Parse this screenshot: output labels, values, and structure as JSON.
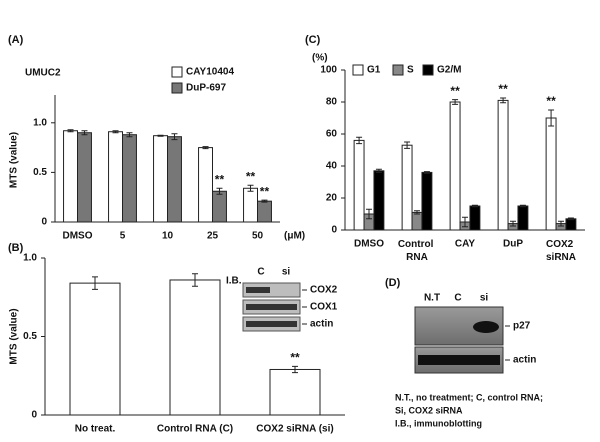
{
  "chart_data": [
    {
      "type": "bar",
      "panel_label": "(A)",
      "title": "UMUC2",
      "ylabel": "MTS (value)",
      "xlabel": "(μM)",
      "categories": [
        "DMSO",
        "5",
        "10",
        "25",
        "50"
      ],
      "series": [
        {
          "name": "CAY10404",
          "color": "#ffffff",
          "values": [
            0.92,
            0.91,
            0.87,
            0.75,
            0.34
          ],
          "errors": [
            0.01,
            0.01,
            0.005,
            0.01,
            0.03
          ],
          "annotations": [
            null,
            null,
            null,
            null,
            "**"
          ]
        },
        {
          "name": "DuP-697",
          "color": "#777777",
          "values": [
            0.9,
            0.88,
            0.86,
            0.31,
            0.21
          ],
          "errors": [
            0.02,
            0.02,
            0.03,
            0.03,
            0.01
          ],
          "annotations": [
            null,
            null,
            null,
            "**",
            "**"
          ]
        }
      ],
      "ylim": [
        0,
        1.25
      ],
      "yticks": [
        0,
        0.5,
        {
          "value": 1,
          "label": "1.0"
        }
      ],
      "legend": "upper right"
    },
    {
      "type": "bar",
      "panel_label": "(B)",
      "ylabel": "MTS (value)",
      "categories": [
        "No treat.",
        "Control RNA (C)",
        "COX2 siRNA (si)"
      ],
      "values": [
        0.84,
        0.86,
        0.29
      ],
      "errors": [
        0.04,
        0.04,
        0.02
      ],
      "annotations": [
        null,
        null,
        "**"
      ],
      "color": "#ffffff",
      "ylim": [
        0,
        1
      ],
      "yticks": [
        0,
        0.5,
        {
          "value": 1,
          "label": "1.0"
        }
      ],
      "inset": {
        "label": "I.B.",
        "lanes": [
          "C",
          "si"
        ],
        "bands": [
          "COX2",
          "COX1",
          "actin"
        ]
      }
    },
    {
      "type": "bar",
      "panel_label": "(C)",
      "ylabel": "(%)",
      "categories": [
        "DMSO",
        "Control RNA",
        "CAY",
        "DuP",
        "COX2 siRNA"
      ],
      "series": [
        {
          "name": "G1",
          "color": "#ffffff",
          "values": [
            56,
            53,
            80,
            81,
            70
          ],
          "errors": [
            2,
            2,
            1.5,
            1.5,
            5
          ],
          "annotations": [
            null,
            null,
            "**",
            "**",
            "**"
          ]
        },
        {
          "name": "S",
          "color": "#888888",
          "values": [
            10,
            11,
            5,
            4,
            4
          ],
          "errors": [
            3,
            1,
            3,
            1.5,
            1.5
          ],
          "annotations": [
            null,
            null,
            null,
            null,
            null
          ]
        },
        {
          "name": "G2/M",
          "color": "#000000",
          "values": [
            37,
            36,
            15,
            15,
            7
          ],
          "errors": [
            1,
            0.5,
            0.5,
            0.5,
            0.5
          ],
          "annotations": [
            null,
            null,
            null,
            null,
            null
          ]
        }
      ],
      "ylim": [
        0,
        100
      ],
      "yticks": [
        0,
        20,
        40,
        60,
        80,
        100
      ],
      "legend": "upper left"
    }
  ],
  "panel_d": {
    "panel_label": "(D)",
    "lanes": [
      "N.T",
      "C",
      "si"
    ],
    "bands": [
      "p27",
      "actin"
    ],
    "caption": [
      "N.T., no treatment; C, control RNA;",
      "Si, COX2 siRNA",
      "I.B., immunoblotting"
    ]
  }
}
